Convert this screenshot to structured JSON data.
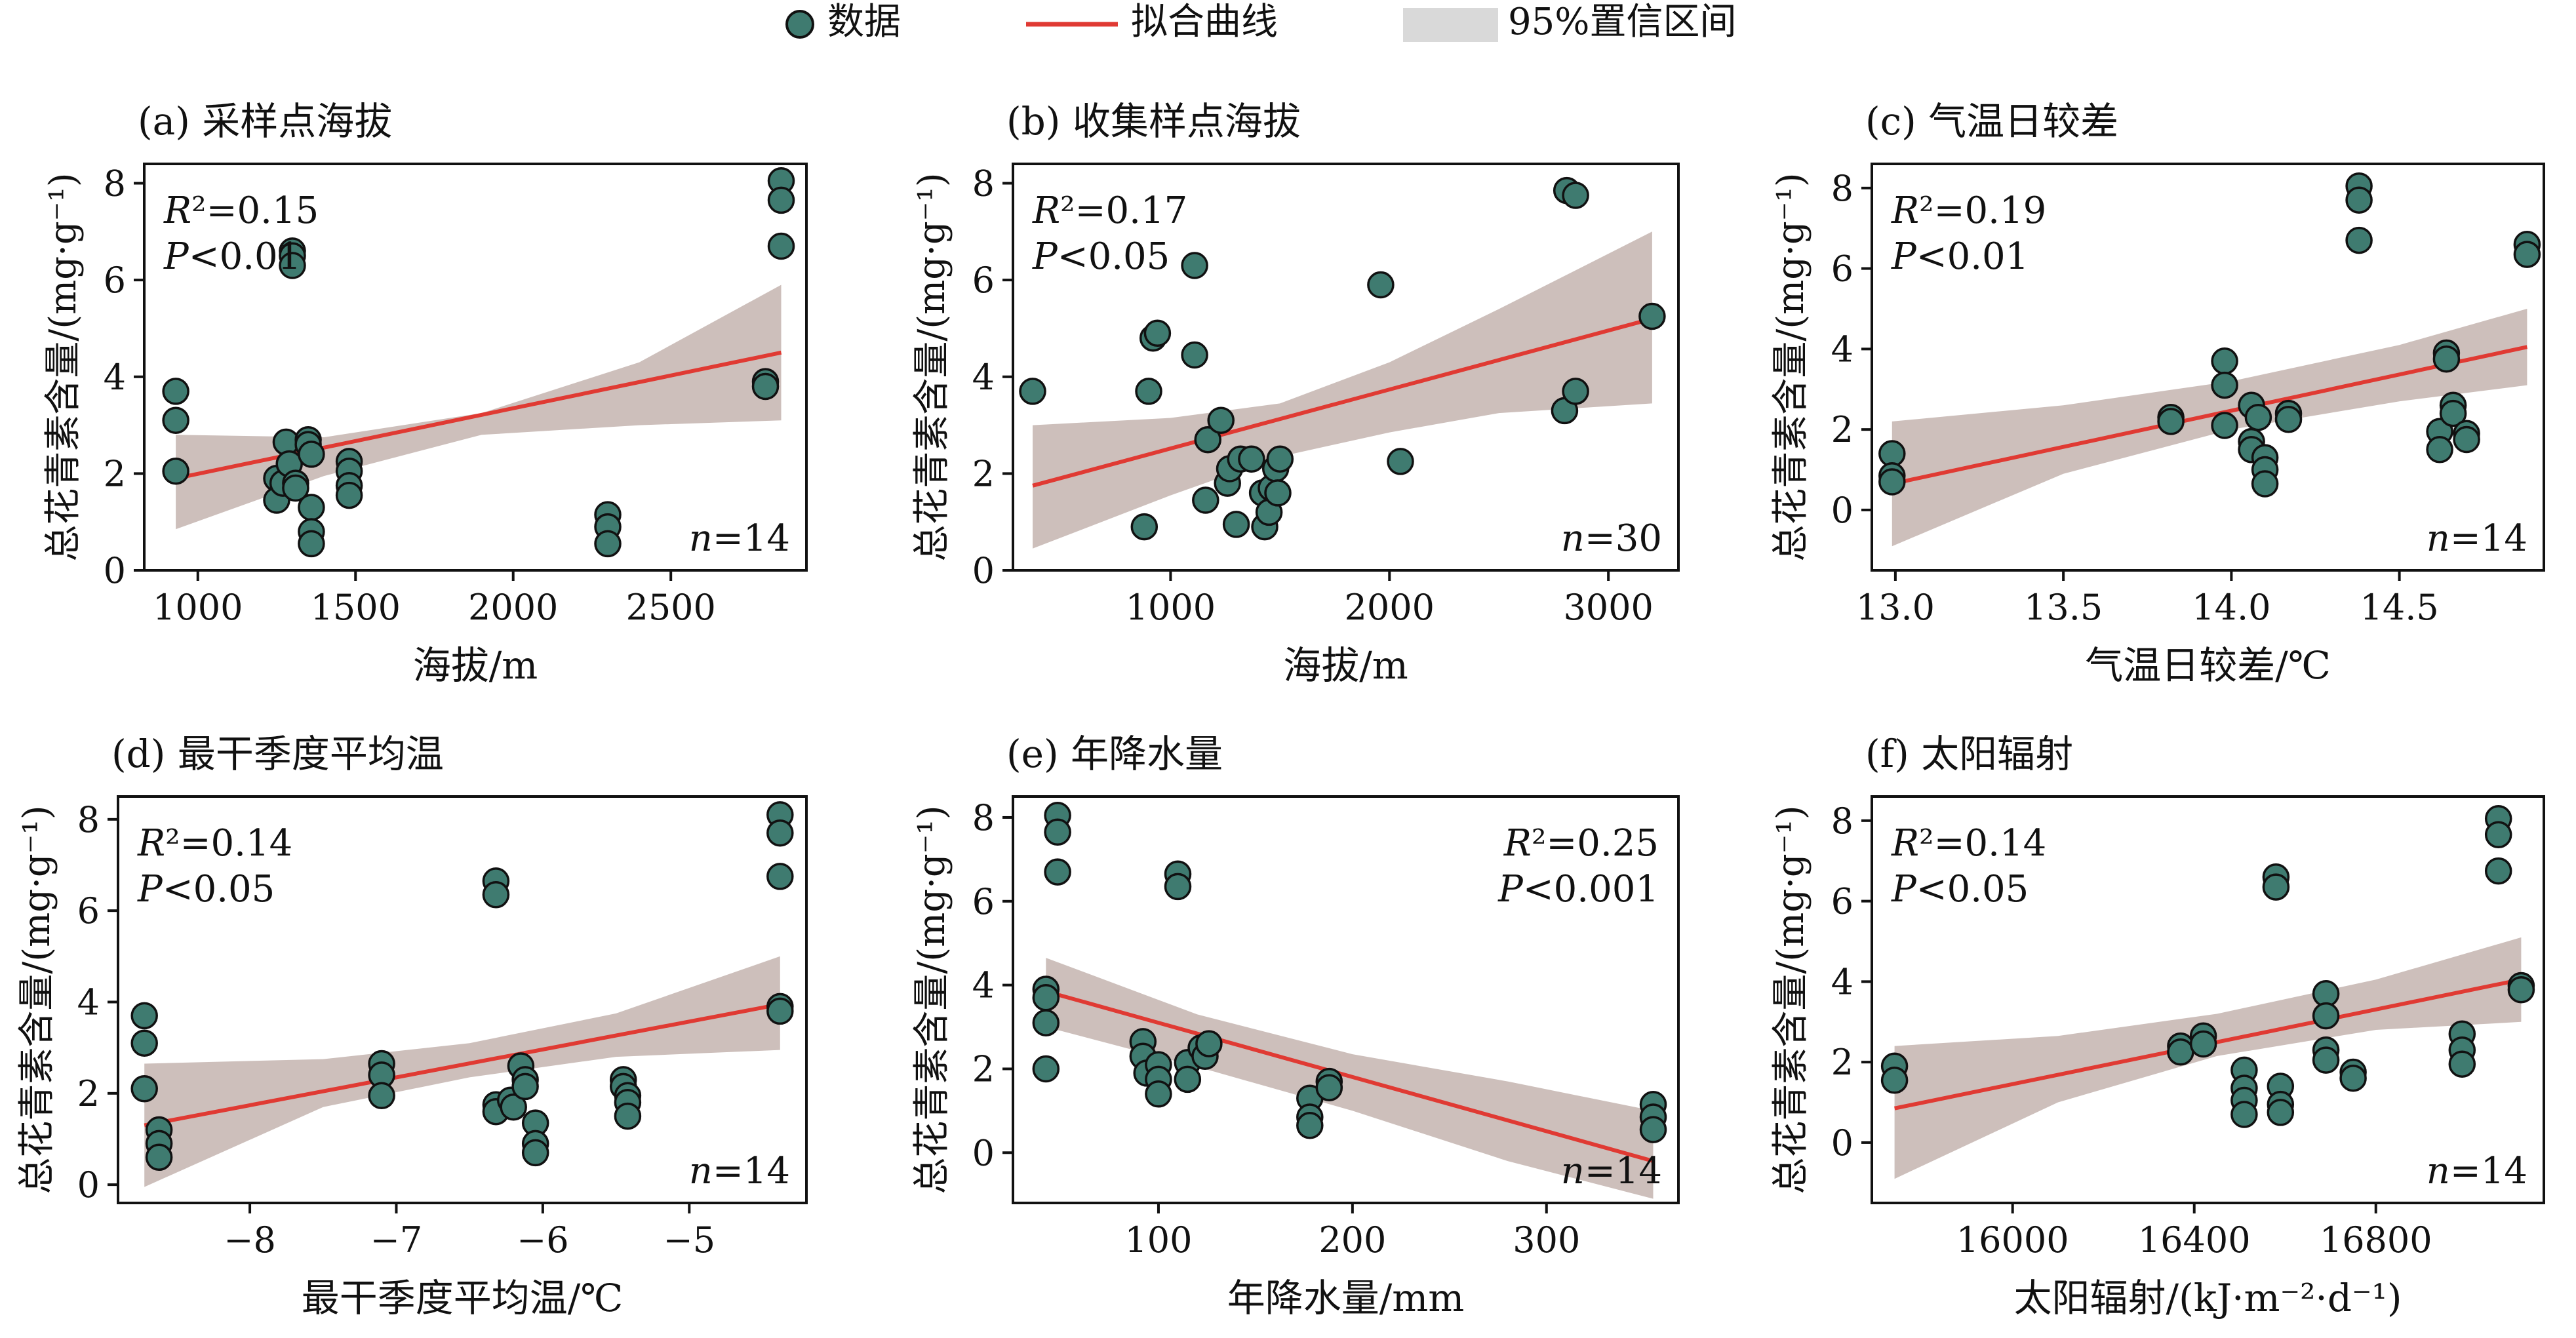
{
  "legend": {
    "points": "数据",
    "line": "拟合曲线",
    "band": "95%置信区间"
  },
  "colors": {
    "point_fill": "#3f7b70",
    "point_stroke": "#111111",
    "fit_line": "#e03a33",
    "ci_band": "#c8b8b4",
    "legend_band": "#d9d9d9"
  },
  "chart_data": [
    {
      "id": "a",
      "type": "scatter",
      "title": "(a) 采样点海拔",
      "xlabel": "海拔/m",
      "ylabel": "总花青素含量/(mg·g⁻¹)",
      "xlim": [
        830,
        2930
      ],
      "ylim": [
        0,
        8.4
      ],
      "xticks": [
        1000,
        1500,
        2000,
        2500
      ],
      "xticklabels": [
        "1000",
        "1500",
        "2000",
        "2500"
      ],
      "yticks": [
        0,
        2,
        4,
        6,
        8
      ],
      "yticklabels": [
        "0",
        "2",
        "4",
        "6",
        "8"
      ],
      "stats": {
        "r2": "R²=0.15",
        "p": "P<0.01",
        "n": "n=14"
      },
      "stats_pos": "top-left",
      "fit": {
        "x": [
          930,
          2850
        ],
        "y": [
          1.9,
          4.5
        ]
      },
      "ci": {
        "x": [
          930,
          1400,
          1900,
          2400,
          2850
        ],
        "upper": [
          2.8,
          2.75,
          3.25,
          4.3,
          5.9
        ],
        "lower": [
          0.85,
          1.95,
          2.8,
          3.0,
          3.1
        ]
      },
      "points": [
        [
          930,
          3.7
        ],
        [
          930,
          3.1
        ],
        [
          930,
          2.05
        ],
        [
          1250,
          1.9
        ],
        [
          1250,
          1.45
        ],
        [
          1270,
          1.8
        ],
        [
          1280,
          2.65
        ],
        [
          1290,
          2.2
        ],
        [
          1300,
          6.6
        ],
        [
          1300,
          6.5
        ],
        [
          1300,
          6.3
        ],
        [
          1310,
          1.8
        ],
        [
          1310,
          1.7
        ],
        [
          1350,
          2.7
        ],
        [
          1350,
          2.6
        ],
        [
          1360,
          2.4
        ],
        [
          1360,
          1.3
        ],
        [
          1360,
          0.8
        ],
        [
          1360,
          0.55
        ],
        [
          1480,
          2.25
        ],
        [
          1480,
          2.05
        ],
        [
          1480,
          1.75
        ],
        [
          1480,
          1.55
        ],
        [
          2300,
          1.15
        ],
        [
          2300,
          0.9
        ],
        [
          2300,
          0.55
        ],
        [
          2800,
          3.9
        ],
        [
          2800,
          3.8
        ],
        [
          2850,
          8.05
        ],
        [
          2850,
          7.65
        ],
        [
          2850,
          6.7
        ]
      ]
    },
    {
      "id": "b",
      "type": "scatter",
      "title": "(b) 收集样点海拔",
      "xlabel": "海拔/m",
      "ylabel": "总花青素含量/(mg·g⁻¹)",
      "xlim": [
        280,
        3320
      ],
      "ylim": [
        0,
        8.4
      ],
      "xticks": [
        1000,
        2000,
        3000
      ],
      "xticklabels": [
        "1000",
        "2000",
        "3000"
      ],
      "yticks": [
        0,
        2,
        4,
        6,
        8
      ],
      "yticklabels": [
        "0",
        "2",
        "4",
        "6",
        "8"
      ],
      "stats": {
        "r2": "R²=0.17",
        "p": "P<0.05",
        "n": "n=30"
      },
      "stats_pos": "top-left",
      "fit": {
        "x": [
          370,
          3200
        ],
        "y": [
          1.75,
          5.2
        ]
      },
      "ci": {
        "x": [
          370,
          1000,
          1500,
          2000,
          2500,
          3200
        ],
        "upper": [
          3.0,
          3.15,
          3.45,
          4.3,
          5.4,
          7.0
        ],
        "lower": [
          0.45,
          1.55,
          2.35,
          2.85,
          3.25,
          3.45
        ]
      },
      "points": [
        [
          370,
          3.7
        ],
        [
          880,
          0.9
        ],
        [
          900,
          3.7
        ],
        [
          920,
          4.8
        ],
        [
          940,
          4.9
        ],
        [
          1110,
          6.3
        ],
        [
          1110,
          4.45
        ],
        [
          1160,
          1.45
        ],
        [
          1170,
          2.7
        ],
        [
          1230,
          3.1
        ],
        [
          1260,
          1.8
        ],
        [
          1270,
          2.1
        ],
        [
          1300,
          0.95
        ],
        [
          1320,
          2.3
        ],
        [
          1370,
          2.3
        ],
        [
          1420,
          1.6
        ],
        [
          1430,
          0.9
        ],
        [
          1450,
          1.2
        ],
        [
          1460,
          1.7
        ],
        [
          1480,
          2.1
        ],
        [
          1500,
          2.3
        ],
        [
          1490,
          1.6
        ],
        [
          1960,
          5.9
        ],
        [
          2050,
          2.25
        ],
        [
          2800,
          3.3
        ],
        [
          2810,
          7.85
        ],
        [
          2850,
          7.75
        ],
        [
          2850,
          3.7
        ],
        [
          3200,
          5.25
        ]
      ]
    },
    {
      "id": "c",
      "type": "scatter",
      "title": "(c) 气温日较差",
      "xlabel": "气温日较差/℃",
      "ylabel": "总花青素含量/(mg·g⁻¹)",
      "xlim": [
        12.93,
        14.93
      ],
      "ylim": [
        -1.5,
        8.6
      ],
      "xticks": [
        13.0,
        13.5,
        14.0,
        14.5
      ],
      "xticklabels": [
        "13.0",
        "13.5",
        "14.0",
        "14.5"
      ],
      "yticks": [
        0,
        2,
        4,
        6,
        8
      ],
      "yticklabels": [
        "0",
        "2",
        "4",
        "6",
        "8"
      ],
      "stats": {
        "r2": "R²=0.19",
        "p": "P<0.01",
        "n": "n=14"
      },
      "stats_pos": "top-left",
      "fit": {
        "x": [
          12.99,
          14.88
        ],
        "y": [
          0.65,
          4.05
        ]
      },
      "ci": {
        "x": [
          12.99,
          13.5,
          14.0,
          14.5,
          14.88
        ],
        "upper": [
          2.2,
          2.6,
          3.2,
          4.1,
          5.0
        ],
        "lower": [
          -0.9,
          0.9,
          2.0,
          2.7,
          3.1
        ]
      },
      "points": [
        [
          12.99,
          1.4
        ],
        [
          12.99,
          0.85
        ],
        [
          12.99,
          0.7
        ],
        [
          13.82,
          2.3
        ],
        [
          13.82,
          2.2
        ],
        [
          13.98,
          3.7
        ],
        [
          13.98,
          3.1
        ],
        [
          13.98,
          2.1
        ],
        [
          14.06,
          2.6
        ],
        [
          14.06,
          1.7
        ],
        [
          14.06,
          1.5
        ],
        [
          14.08,
          2.3
        ],
        [
          14.1,
          1.3
        ],
        [
          14.1,
          1.0
        ],
        [
          14.1,
          0.65
        ],
        [
          14.17,
          2.4
        ],
        [
          14.17,
          2.25
        ],
        [
          14.38,
          8.05
        ],
        [
          14.38,
          7.7
        ],
        [
          14.38,
          6.7
        ],
        [
          14.62,
          1.95
        ],
        [
          14.62,
          1.5
        ],
        [
          14.64,
          3.9
        ],
        [
          14.64,
          3.75
        ],
        [
          14.66,
          2.6
        ],
        [
          14.66,
          2.4
        ],
        [
          14.7,
          1.9
        ],
        [
          14.7,
          1.75
        ],
        [
          14.88,
          6.6
        ],
        [
          14.88,
          6.35
        ]
      ]
    },
    {
      "id": "d",
      "type": "scatter",
      "title": "(d) 最干季度平均温",
      "xlabel": "最干季度平均温/℃",
      "ylabel": "总花青素含量/(mg·g⁻¹)",
      "xlim": [
        -8.9,
        -4.2
      ],
      "ylim": [
        -0.4,
        8.5
      ],
      "xticks": [
        -8,
        -7,
        -6,
        -5
      ],
      "xticklabels": [
        "−8",
        "−7",
        "−6",
        "−5"
      ],
      "yticks": [
        0,
        2,
        4,
        6,
        8
      ],
      "yticklabels": [
        "0",
        "2",
        "4",
        "6",
        "8"
      ],
      "stats": {
        "r2": "R²=0.14",
        "p": "P<0.05",
        "n": "n=14"
      },
      "stats_pos": "top-left",
      "fit": {
        "x": [
          -8.72,
          -4.38
        ],
        "y": [
          1.3,
          3.95
        ]
      },
      "ci": {
        "x": [
          -8.72,
          -7.5,
          -6.5,
          -5.5,
          -4.38
        ],
        "upper": [
          2.65,
          2.75,
          3.1,
          3.75,
          5.0
        ],
        "lower": [
          -0.05,
          1.7,
          2.35,
          2.8,
          2.95
        ]
      },
      "points": [
        [
          -8.72,
          3.7
        ],
        [
          -8.72,
          3.1
        ],
        [
          -8.72,
          2.1
        ],
        [
          -8.62,
          1.2
        ],
        [
          -8.62,
          0.9
        ],
        [
          -8.62,
          0.6
        ],
        [
          -7.1,
          2.65
        ],
        [
          -7.1,
          2.4
        ],
        [
          -7.1,
          1.95
        ],
        [
          -6.32,
          6.65
        ],
        [
          -6.32,
          6.35
        ],
        [
          -6.32,
          1.75
        ],
        [
          -6.32,
          1.6
        ],
        [
          -6.22,
          1.85
        ],
        [
          -6.2,
          1.7
        ],
        [
          -6.15,
          2.6
        ],
        [
          -6.12,
          2.3
        ],
        [
          -6.12,
          2.15
        ],
        [
          -6.05,
          1.35
        ],
        [
          -6.05,
          0.9
        ],
        [
          -6.05,
          0.7
        ],
        [
          -5.45,
          2.3
        ],
        [
          -5.45,
          2.15
        ],
        [
          -5.42,
          1.95
        ],
        [
          -5.42,
          1.8
        ],
        [
          -5.42,
          1.5
        ],
        [
          -4.38,
          8.1
        ],
        [
          -4.38,
          7.7
        ],
        [
          -4.38,
          6.75
        ],
        [
          -4.38,
          3.9
        ],
        [
          -4.38,
          3.8
        ]
      ]
    },
    {
      "id": "e",
      "type": "scatter",
      "title": "(e) 年降水量",
      "xlabel": "年降水量/mm",
      "ylabel": "总花青素含量/(mg·g⁻¹)",
      "xlim": [
        25,
        368
      ],
      "ylim": [
        -1.2,
        8.5
      ],
      "xticks": [
        100,
        200,
        300
      ],
      "xticklabels": [
        "100",
        "200",
        "300"
      ],
      "yticks": [
        0,
        2,
        4,
        6,
        8
      ],
      "yticklabels": [
        "0",
        "2",
        "4",
        "6",
        "8"
      ],
      "stats": {
        "r2": "R²=0.25",
        "p": "P<0.001",
        "n": "n=14"
      },
      "stats_pos": "top-right",
      "fit": {
        "x": [
          42,
          355
        ],
        "y": [
          3.85,
          -0.2
        ]
      },
      "ci": {
        "x": [
          42,
          120,
          200,
          280,
          355
        ],
        "upper": [
          4.65,
          3.3,
          2.35,
          1.7,
          1.0
        ],
        "lower": [
          3.0,
          2.05,
          1.0,
          -0.2,
          -1.1
        ]
      },
      "points": [
        [
          42,
          3.9
        ],
        [
          42,
          3.7
        ],
        [
          42,
          3.1
        ],
        [
          42,
          2.0
        ],
        [
          48,
          8.05
        ],
        [
          48,
          7.65
        ],
        [
          48,
          6.7
        ],
        [
          92,
          2.65
        ],
        [
          92,
          2.3
        ],
        [
          94,
          1.9
        ],
        [
          100,
          2.1
        ],
        [
          100,
          1.75
        ],
        [
          100,
          1.4
        ],
        [
          110,
          6.65
        ],
        [
          110,
          6.35
        ],
        [
          115,
          2.15
        ],
        [
          115,
          1.75
        ],
        [
          122,
          2.5
        ],
        [
          124,
          2.3
        ],
        [
          126,
          2.6
        ],
        [
          178,
          1.3
        ],
        [
          178,
          0.85
        ],
        [
          178,
          0.65
        ],
        [
          188,
          1.7
        ],
        [
          188,
          1.55
        ],
        [
          355,
          1.15
        ],
        [
          355,
          0.85
        ],
        [
          355,
          0.55
        ]
      ]
    },
    {
      "id": "f",
      "type": "scatter",
      "title": "(f) 太阳辐射",
      "xlabel": "太阳辐射/(kJ·m⁻²·d⁻¹)",
      "ylabel": "总花青素含量/(mg·g⁻¹)",
      "xlim": [
        15690,
        17170
      ],
      "ylim": [
        -1.5,
        8.6
      ],
      "xticks": [
        16000,
        16400,
        16800
      ],
      "xticklabels": [
        "16000",
        "16400",
        "16800"
      ],
      "yticks": [
        0,
        2,
        4,
        6,
        8
      ],
      "yticklabels": [
        "0",
        "2",
        "4",
        "6",
        "8"
      ],
      "stats": {
        "r2": "R²=0.14",
        "p": "P<0.05",
        "n": "n=14"
      },
      "stats_pos": "top-left",
      "fit": {
        "x": [
          15740,
          17120
        ],
        "y": [
          0.85,
          4.05
        ]
      },
      "ci": {
        "x": [
          15740,
          16100,
          16450,
          16800,
          17120
        ],
        "upper": [
          2.4,
          2.65,
          3.2,
          4.05,
          5.1
        ],
        "lower": [
          -0.9,
          1.0,
          2.15,
          2.8,
          3.0
        ]
      },
      "points": [
        [
          15740,
          1.9
        ],
        [
          15740,
          1.55
        ],
        [
          16370,
          2.4
        ],
        [
          16370,
          2.25
        ],
        [
          16420,
          2.65
        ],
        [
          16420,
          2.45
        ],
        [
          16510,
          1.8
        ],
        [
          16510,
          1.35
        ],
        [
          16510,
          1.05
        ],
        [
          16510,
          0.7
        ],
        [
          16580,
          6.6
        ],
        [
          16580,
          6.35
        ],
        [
          16590,
          1.4
        ],
        [
          16590,
          0.95
        ],
        [
          16590,
          0.75
        ],
        [
          16690,
          3.7
        ],
        [
          16690,
          3.15
        ],
        [
          16690,
          2.3
        ],
        [
          16690,
          2.05
        ],
        [
          16750,
          1.75
        ],
        [
          16750,
          1.6
        ],
        [
          16990,
          2.7
        ],
        [
          16990,
          2.3
        ],
        [
          16990,
          1.95
        ],
        [
          17070,
          8.05
        ],
        [
          17070,
          7.65
        ],
        [
          17070,
          6.75
        ],
        [
          17120,
          3.9
        ],
        [
          17120,
          3.8
        ]
      ]
    }
  ]
}
